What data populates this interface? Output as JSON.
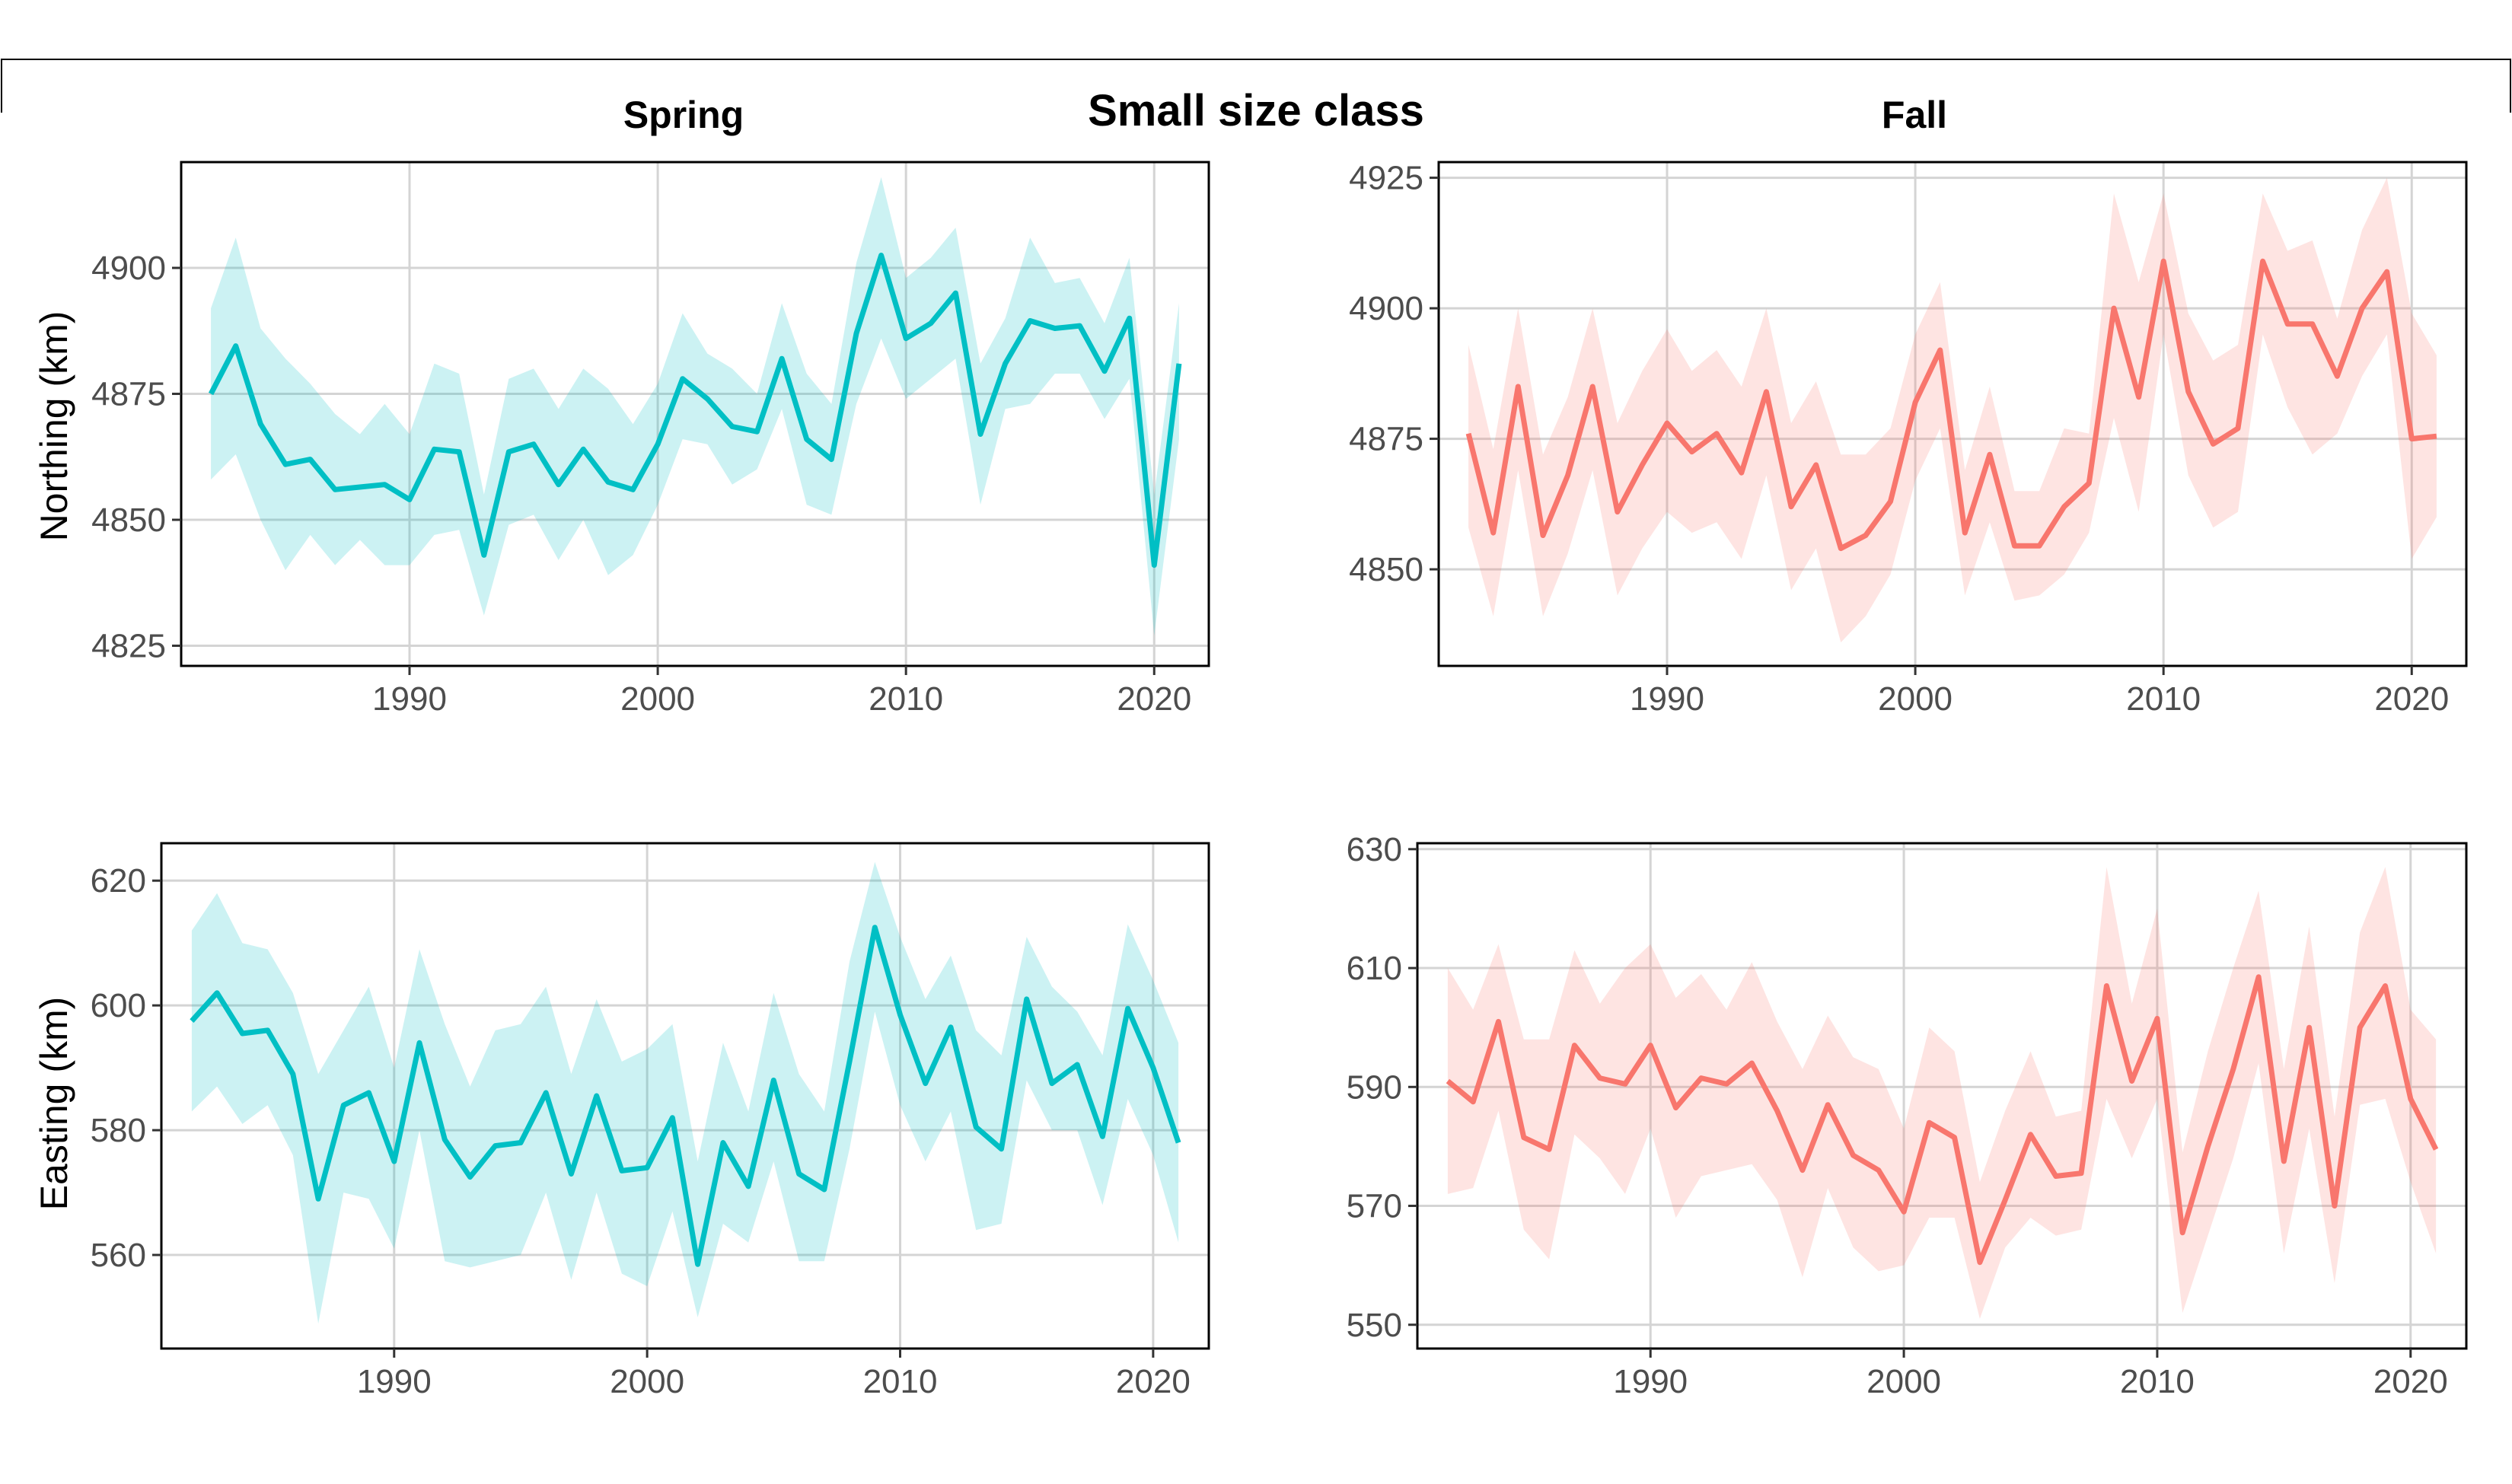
{
  "figure": {
    "main_title": "Small size class",
    "col_titles": [
      "Spring",
      "Fall"
    ],
    "row_labels": [
      "Northing (km)",
      "Easting (km)"
    ],
    "spring_color": "#00BFC4",
    "fall_color": "#F8766D"
  },
  "chart_data": [
    {
      "type": "line",
      "panel": "spring-northing",
      "title": "Spring",
      "ylabel": "Northing (km)",
      "xlim": [
        1980.8,
        2022.2
      ],
      "ylim": [
        4821,
        4921
      ],
      "xticks": [
        1990,
        2000,
        2010,
        2020
      ],
      "yticks": [
        4825,
        4850,
        4875,
        4900
      ],
      "grid": true,
      "x": [
        1982,
        1983,
        1984,
        1985,
        1986,
        1987,
        1988,
        1989,
        1990,
        1991,
        1992,
        1993,
        1994,
        1995,
        1996,
        1997,
        1998,
        1999,
        2000,
        2001,
        2002,
        2003,
        2004,
        2005,
        2006,
        2007,
        2008,
        2009,
        2010,
        2011,
        2012,
        2013,
        2014,
        2015,
        2016,
        2017,
        2018,
        2019,
        2020,
        2021
      ],
      "series": [
        {
          "values": [
            4875,
            4884.5,
            4869,
            4861,
            4862,
            4856,
            4856.5,
            4857,
            4854,
            4864,
            4863.5,
            4843,
            4863.5,
            4865,
            4857,
            4864,
            4857.5,
            4856,
            4865,
            4878,
            4874,
            4868.5,
            4867.5,
            4882,
            4866,
            4862,
            4887,
            4902.5,
            4886,
            4889,
            4895,
            4867,
            4881,
            4889.5,
            4888,
            4888.5,
            4879.5,
            4890,
            4841,
            4881
          ],
          "lower": [
            4858,
            4863,
            4850,
            4840,
            4847,
            4841,
            4846,
            4841,
            4841,
            4847,
            4848,
            4831,
            4849,
            4851,
            4842,
            4850,
            4839,
            4843,
            4853,
            4866,
            4865,
            4857,
            4860,
            4872,
            4853,
            4851,
            4873,
            4886,
            4874,
            4878,
            4882,
            4853,
            4872,
            4873,
            4879,
            4879,
            4870,
            4878,
            4827,
            4866
          ],
          "upper": [
            4892,
            4906,
            4888,
            4882,
            4877,
            4871,
            4867,
            4873,
            4867,
            4881,
            4879,
            4855,
            4878,
            4880,
            4872,
            4880,
            4876,
            4869,
            4877,
            4891,
            4883,
            4880,
            4875,
            4893,
            4879,
            4873,
            4901,
            4918,
            4898,
            4902,
            4908,
            4881,
            4890,
            4906,
            4897,
            4898,
            4889,
            4902,
            4855,
            4893
          ]
        }
      ]
    },
    {
      "type": "line",
      "panel": "fall-northing",
      "title": "Fall",
      "ylabel": "",
      "xlim": [
        1980.8,
        2022.2
      ],
      "ylim": [
        4831.5,
        4928
      ],
      "xticks": [
        1990,
        2000,
        2010,
        2020
      ],
      "yticks": [
        4850,
        4875,
        4900,
        4925
      ],
      "grid": true,
      "x": [
        1982,
        1983,
        1984,
        1985,
        1986,
        1987,
        1988,
        1989,
        1990,
        1991,
        1992,
        1993,
        1994,
        1995,
        1996,
        1997,
        1998,
        1999,
        2000,
        2001,
        2002,
        2003,
        2004,
        2005,
        2006,
        2007,
        2008,
        2009,
        2010,
        2011,
        2012,
        2013,
        2014,
        2015,
        2016,
        2017,
        2018,
        2019,
        2020,
        2021
      ],
      "series": [
        {
          "values": [
            4876,
            4857,
            4885,
            4856.5,
            4868,
            4885,
            4861,
            4870,
            4878,
            4872.5,
            4876,
            4868.5,
            4884,
            4862,
            4870,
            4854,
            4856.5,
            4863,
            4882,
            4892,
            4857,
            4872,
            4854.5,
            4854.5,
            4862,
            4866.5,
            4900,
            4883,
            4909,
            4884,
            4874,
            4877,
            4909,
            4897,
            4897,
            4887,
            4900,
            4907,
            4875,
            4875.5
          ],
          "lower": [
            4858,
            4841,
            4869,
            4841,
            4853,
            4869,
            4845,
            4854,
            4861,
            4857,
            4859,
            4852,
            4868,
            4846,
            4854,
            4836,
            4841,
            4849,
            4867,
            4877,
            4845,
            4859,
            4844,
            4845,
            4849,
            4857,
            4879,
            4861,
            4895,
            4868,
            4858,
            4861,
            4895,
            4881,
            4872,
            4876,
            4887,
            4895,
            4852,
            4860
          ],
          "upper": [
            4893,
            4873,
            4900,
            4872,
            4883,
            4900,
            4878,
            4888,
            4896,
            4888,
            4892,
            4885,
            4900,
            4878,
            4886,
            4872,
            4872,
            4877,
            4895,
            4905,
            4869,
            4885,
            4865,
            4865,
            4877,
            4876,
            4922,
            4905,
            4922,
            4899,
            4890,
            4893,
            4922,
            4911,
            4913,
            4898,
            4915,
            4925,
            4899,
            4891
          ]
        }
      ]
    },
    {
      "type": "line",
      "panel": "spring-easting",
      "title": "",
      "ylabel": "Easting (km)",
      "xlim": [
        1980.8,
        2022.2
      ],
      "ylim": [
        545,
        626
      ],
      "xticks": [
        1990,
        2000,
        2010,
        2020
      ],
      "yticks": [
        560,
        580,
        600,
        620
      ],
      "grid": true,
      "x": [
        1982,
        1983,
        1984,
        1985,
        1986,
        1987,
        1988,
        1989,
        1990,
        1991,
        1992,
        1993,
        1994,
        1995,
        1996,
        1997,
        1998,
        1999,
        2000,
        2001,
        2002,
        2003,
        2004,
        2005,
        2006,
        2007,
        2008,
        2009,
        2010,
        2011,
        2012,
        2013,
        2014,
        2015,
        2016,
        2017,
        2018,
        2019,
        2020,
        2021
      ],
      "series": [
        {
          "values": [
            597.5,
            602,
            595.5,
            596,
            589,
            569,
            584,
            586,
            575,
            594,
            578.5,
            572.5,
            577.5,
            578,
            586,
            573,
            585.5,
            573.5,
            574,
            582,
            558.5,
            578,
            571,
            588,
            573,
            570.5,
            591,
            612.5,
            598.5,
            587.5,
            596.5,
            580.5,
            577,
            601,
            587.5,
            590.5,
            579,
            599.5,
            590,
            578
          ],
          "lower": [
            583,
            587,
            581,
            584,
            576,
            549,
            570,
            569,
            561,
            580,
            559,
            558,
            559,
            560,
            570,
            556,
            570,
            557,
            555,
            567,
            550,
            565,
            562,
            575,
            559,
            559,
            577,
            599,
            584,
            575,
            583,
            564,
            565,
            588,
            580,
            580,
            568,
            585,
            576,
            562
          ],
          "upper": [
            612,
            618,
            610,
            609,
            602,
            589,
            596,
            603,
            590,
            609,
            597,
            587,
            596,
            597,
            603,
            589,
            601,
            591,
            593,
            597,
            575,
            594,
            583,
            602,
            589,
            583,
            607,
            623,
            611,
            601,
            608,
            596,
            592,
            611,
            603,
            599,
            592,
            613,
            604,
            594
          ]
        }
      ]
    },
    {
      "type": "line",
      "panel": "fall-easting",
      "title": "",
      "ylabel": "",
      "xlim": [
        1980.8,
        2022.2
      ],
      "ylim": [
        546,
        631
      ],
      "xticks": [
        1990,
        2000,
        2010,
        2020
      ],
      "yticks": [
        550,
        570,
        590,
        610,
        630
      ],
      "grid": true,
      "x": [
        1982,
        1983,
        1984,
        1985,
        1986,
        1987,
        1988,
        1989,
        1990,
        1991,
        1992,
        1993,
        1994,
        1995,
        1996,
        1997,
        1998,
        1999,
        2000,
        2001,
        2002,
        2003,
        2004,
        2005,
        2006,
        2007,
        2008,
        2009,
        2010,
        2011,
        2012,
        2013,
        2014,
        2015,
        2016,
        2017,
        2018,
        2019,
        2020,
        2021
      ],
      "series": [
        {
          "values": [
            591,
            587.5,
            601,
            581.5,
            579.5,
            597,
            591.5,
            590.5,
            597,
            586.5,
            591.5,
            590.5,
            594,
            586,
            576,
            587,
            578.5,
            576,
            569,
            584,
            581.5,
            560.5,
            571,
            582,
            575,
            575.5,
            607,
            591,
            601.5,
            565.5,
            580,
            593,
            608.5,
            577.5,
            600,
            570,
            600,
            607,
            588,
            579.5
          ],
          "lower": [
            572,
            573,
            586,
            566,
            561,
            582,
            578,
            572,
            583,
            568,
            575,
            576,
            577,
            571,
            558,
            573,
            563,
            559,
            560,
            568,
            568,
            551,
            563,
            568,
            565,
            566,
            588,
            578,
            588,
            552,
            565,
            578,
            594,
            562,
            583,
            557,
            587,
            588,
            574,
            562
          ],
          "upper": [
            610,
            603,
            614,
            598,
            598,
            613,
            604,
            610,
            614,
            605,
            609,
            603,
            611,
            601,
            593,
            602,
            595,
            593,
            583,
            600,
            596,
            574,
            586,
            596,
            585,
            586,
            627,
            604,
            620,
            579,
            596,
            610,
            623,
            593,
            617,
            585,
            616,
            627,
            603,
            598
          ]
        }
      ]
    }
  ]
}
